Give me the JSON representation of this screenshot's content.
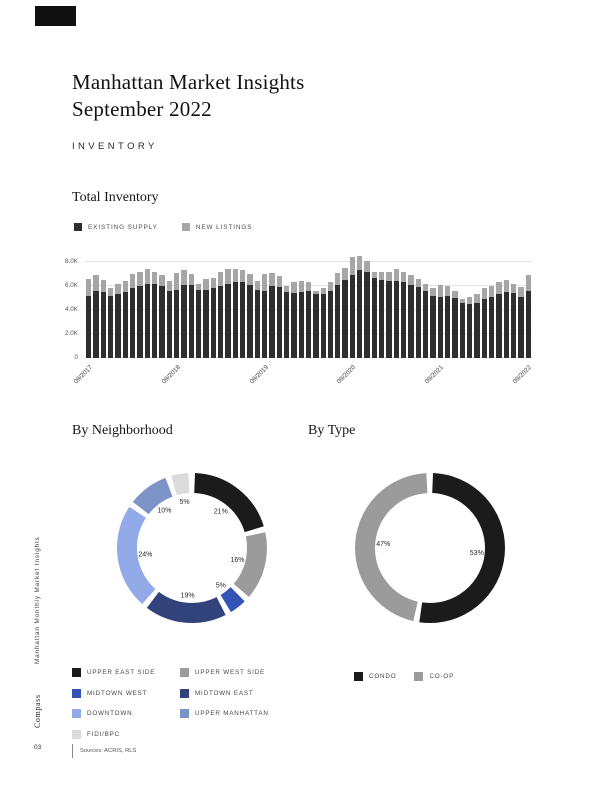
{
  "header": {
    "title_line1": "Manhattan Market Insights",
    "title_line2": "September 2022",
    "section_label": "INVENTORY"
  },
  "sidebar": {
    "vertical_label": "Manhattan Monthly Market Insights",
    "brand": "Compass",
    "page_number": "03"
  },
  "footer": {
    "sources": "Sources: ACRIS, RLS"
  },
  "colors": {
    "black": "#1b1b1b",
    "gray": "#9b9b9b",
    "grid": "#e4e4e4"
  },
  "chart_data": [
    {
      "type": "bar",
      "stacked": true,
      "title": "Total Inventory",
      "ylim": [
        0,
        9
      ],
      "y_ticks": [
        "0",
        "2.0K",
        "4.0K",
        "6.0K",
        "8.0K"
      ],
      "x_tick_labels": [
        "09/2017",
        "09/2018",
        "09/2019",
        "09/2020",
        "09/2021",
        "09/2022"
      ],
      "x_tick_indices": [
        0,
        12,
        24,
        36,
        48,
        60
      ],
      "x": [
        "09/2017",
        "10/2017",
        "11/2017",
        "12/2017",
        "01/2018",
        "02/2018",
        "03/2018",
        "04/2018",
        "05/2018",
        "06/2018",
        "07/2018",
        "08/2018",
        "09/2018",
        "10/2018",
        "11/2018",
        "12/2018",
        "01/2019",
        "02/2019",
        "03/2019",
        "04/2019",
        "05/2019",
        "06/2019",
        "07/2019",
        "08/2019",
        "09/2019",
        "10/2019",
        "11/2019",
        "12/2019",
        "01/2020",
        "02/2020",
        "03/2020",
        "04/2020",
        "05/2020",
        "06/2020",
        "07/2020",
        "08/2020",
        "09/2020",
        "10/2020",
        "11/2020",
        "12/2020",
        "01/2021",
        "02/2021",
        "03/2021",
        "04/2021",
        "05/2021",
        "06/2021",
        "07/2021",
        "08/2021",
        "09/2021",
        "10/2021",
        "11/2021",
        "12/2021",
        "01/2022",
        "02/2022",
        "03/2022",
        "04/2022",
        "05/2022",
        "06/2022",
        "07/2022",
        "08/2022",
        "09/2022"
      ],
      "series": [
        {
          "name": "EXISTING SUPPLY",
          "color": "#2e2e2e",
          "values": [
            5.2,
            5.6,
            5.5,
            5.2,
            5.3,
            5.5,
            5.8,
            6.0,
            6.2,
            6.2,
            6.0,
            5.6,
            5.7,
            6.1,
            6.1,
            5.7,
            5.7,
            5.8,
            6.0,
            6.2,
            6.3,
            6.3,
            6.1,
            5.7,
            5.6,
            6.0,
            5.9,
            5.5,
            5.4,
            5.5,
            5.6,
            5.3,
            5.3,
            5.6,
            6.1,
            6.5,
            6.9,
            7.3,
            7.2,
            6.7,
            6.5,
            6.4,
            6.4,
            6.3,
            6.1,
            5.9,
            5.6,
            5.2,
            5.1,
            5.2,
            5.0,
            4.6,
            4.5,
            4.6,
            4.9,
            5.1,
            5.3,
            5.5,
            5.4,
            5.1,
            5.6
          ]
        },
        {
          "name": "NEW LISTINGS",
          "color": "#a6a6a6",
          "values": [
            1.4,
            1.3,
            1.0,
            0.6,
            0.9,
            0.9,
            1.2,
            1.2,
            1.2,
            1.0,
            0.9,
            0.8,
            1.4,
            1.2,
            0.9,
            0.5,
            0.9,
            0.9,
            1.2,
            1.2,
            1.1,
            1.0,
            0.9,
            0.7,
            1.4,
            1.1,
            0.9,
            0.5,
            0.9,
            0.9,
            0.7,
            0.3,
            0.5,
            0.7,
            1.0,
            1.0,
            1.5,
            1.2,
            0.9,
            0.5,
            0.7,
            0.8,
            1.0,
            0.9,
            0.8,
            0.7,
            0.6,
            0.6,
            1.0,
            0.8,
            0.6,
            0.3,
            0.6,
            0.7,
            0.9,
            0.9,
            1.0,
            1.0,
            0.8,
            0.8,
            1.3
          ]
        }
      ]
    },
    {
      "type": "donut",
      "title": "By Neighborhood",
      "segments": [
        {
          "label": "UPPER EAST SIDE",
          "value": 21,
          "color": "#1b1b1b"
        },
        {
          "label": "UPPER WEST SIDE",
          "value": 16,
          "color": "#9b9b9b"
        },
        {
          "label": "MIDTOWN WEST",
          "value": 5,
          "color": "#3353b5"
        },
        {
          "label": "MIDTOWN EAST",
          "value": 19,
          "color": "#32427a"
        },
        {
          "label": "DOWNTOWN",
          "value": 24,
          "color": "#93aae8"
        },
        {
          "label": "UPPER MANHATTAN",
          "value": 10,
          "color": "#7b93c7"
        },
        {
          "label": "FIDI/BPC",
          "value": 5,
          "color": "#dbdbdb"
        }
      ],
      "legend_columns": [
        [
          0,
          2,
          4,
          6
        ],
        [
          1,
          3,
          5
        ]
      ]
    },
    {
      "type": "donut",
      "title": "By Type",
      "segments": [
        {
          "label": "CONDO",
          "value": 53,
          "color": "#1b1b1b"
        },
        {
          "label": "CO-OP",
          "value": 47,
          "color": "#9b9b9b"
        }
      ]
    }
  ]
}
